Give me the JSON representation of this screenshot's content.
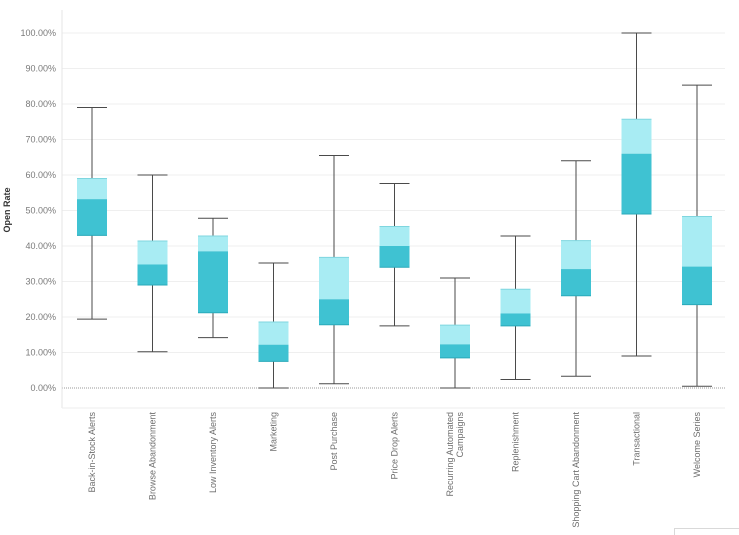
{
  "chart_data": {
    "type": "boxplot",
    "ylabel": "Open Rate",
    "ylim": [
      0,
      1
    ],
    "yticks": [
      "0.00%",
      "10.00%",
      "20.00%",
      "30.00%",
      "40.00%",
      "50.00%",
      "60.00%",
      "70.00%",
      "80.00%",
      "90.00%",
      "100.00%"
    ],
    "grid": true,
    "categories": [
      "Back-in-Stock Alerts",
      "Browse Abandonment",
      "Low Inventory Alerts",
      "Marketing",
      "Post Purchase",
      "Price Drop Alerts",
      "Recurring Automated Campaigns",
      "Replenishment",
      "Shopping Cart Abandonment",
      "Transactional",
      "Welcome Series"
    ],
    "boxes": [
      {
        "min": 0.194,
        "q1": 0.43,
        "median": 0.532,
        "q3": 0.59,
        "max": 0.79
      },
      {
        "min": 0.102,
        "q1": 0.29,
        "median": 0.348,
        "q3": 0.414,
        "max": 0.6
      },
      {
        "min": 0.142,
        "q1": 0.212,
        "median": 0.385,
        "q3": 0.428,
        "max": 0.478
      },
      {
        "min": 0.0,
        "q1": 0.075,
        "median": 0.122,
        "q3": 0.186,
        "max": 0.352
      },
      {
        "min": 0.012,
        "q1": 0.178,
        "median": 0.25,
        "q3": 0.368,
        "max": 0.655
      },
      {
        "min": 0.175,
        "q1": 0.34,
        "median": 0.4,
        "q3": 0.455,
        "max": 0.576
      },
      {
        "min": 0.0,
        "q1": 0.085,
        "median": 0.123,
        "q3": 0.177,
        "max": 0.31
      },
      {
        "min": 0.024,
        "q1": 0.175,
        "median": 0.21,
        "q3": 0.278,
        "max": 0.428
      },
      {
        "min": 0.033,
        "q1": 0.26,
        "median": 0.335,
        "q3": 0.415,
        "max": 0.64
      },
      {
        "min": 0.09,
        "q1": 0.49,
        "median": 0.66,
        "q3": 0.757,
        "max": 1.0
      },
      {
        "min": 0.005,
        "q1": 0.235,
        "median": 0.342,
        "q3": 0.483,
        "max": 0.853
      }
    ],
    "colors": {
      "upper_box": "#a8ecf3",
      "lower_box": "#3fc2d2",
      "whisker": "#4a4a4a",
      "grid": "#efefef",
      "zero_line": "#9a9a9a"
    }
  }
}
